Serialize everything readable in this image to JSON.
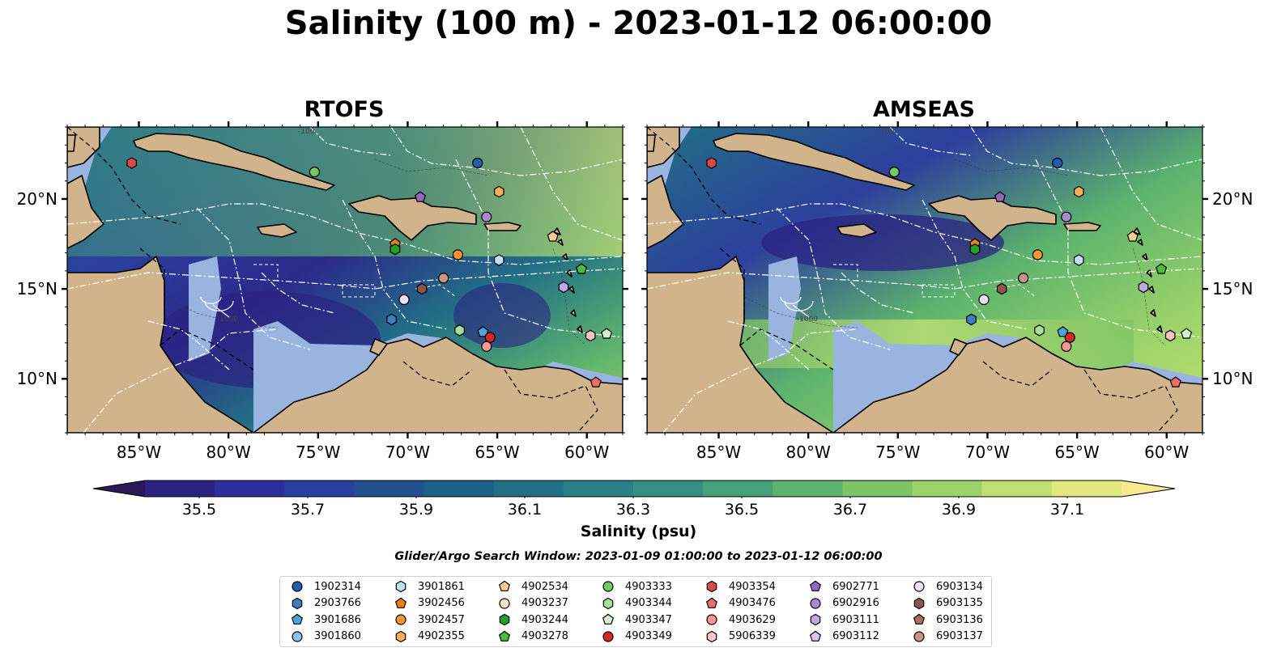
{
  "title": "Salinity (100 m) - 2023-01-12 06:00:00",
  "colors": {
    "land": "#d2b48c",
    "shallow_water": "#9ab4e0",
    "colormap": [
      "#2a1858",
      "#2b2281",
      "#2c2f9c",
      "#283f9d",
      "#21508f",
      "#1b6187",
      "#227085",
      "#2b7f86",
      "#388d84",
      "#46a07a",
      "#5cb36d",
      "#7cc466",
      "#9dd46a",
      "#c1e073",
      "#e2e880",
      "#f6ea8c"
    ]
  },
  "panels": [
    {
      "title": "RTOFS"
    },
    {
      "title": "AMSEAS"
    }
  ],
  "axes": {
    "lon_labels": [
      "85°W",
      "80°W",
      "75°W",
      "70°W",
      "65°W",
      "60°W"
    ],
    "lat_labels": [
      "20°N",
      "15°N",
      "10°N"
    ],
    "lon_range": [
      -89,
      -58
    ],
    "lat_range": [
      7,
      24
    ]
  },
  "contour_labels": [
    "-100",
    "-1000"
  ],
  "colorbar": {
    "label": "Salinity (psu)",
    "ticks": [
      "35.5",
      "35.7",
      "35.9",
      "36.1",
      "36.3",
      "36.5",
      "36.7",
      "36.9",
      "37.1"
    ],
    "range": [
      35.4,
      37.2
    ],
    "extend": "both"
  },
  "search_window": "Glider/Argo Search Window: 2023-01-09 01:00:00 to 2023-01-12 06:00:00",
  "legend": {
    "columns": 7,
    "items": [
      {
        "id": "1902314",
        "marker": "circle",
        "color": "#1f5fae"
      },
      {
        "id": "2903766",
        "marker": "hexagon",
        "color": "#3b7fc0"
      },
      {
        "id": "3901686",
        "marker": "pentagon",
        "color": "#4fa3dd"
      },
      {
        "id": "3901860",
        "marker": "circle",
        "color": "#8cc1ec"
      },
      {
        "id": "3901861",
        "marker": "hexagon",
        "color": "#bfe0f5"
      },
      {
        "id": "3902456",
        "marker": "pentagon",
        "color": "#f07f12"
      },
      {
        "id": "3902457",
        "marker": "circle",
        "color": "#f59431"
      },
      {
        "id": "4902355",
        "marker": "hexagon",
        "color": "#f9ad5b"
      },
      {
        "id": "4902534",
        "marker": "pentagon",
        "color": "#fbcb93"
      },
      {
        "id": "4903237",
        "marker": "circle",
        "color": "#fde2c6"
      },
      {
        "id": "4903244",
        "marker": "hexagon",
        "color": "#22a02c"
      },
      {
        "id": "4903278",
        "marker": "pentagon",
        "color": "#4cbc3c"
      },
      {
        "id": "4903333",
        "marker": "circle",
        "color": "#74c866"
      },
      {
        "id": "4903344",
        "marker": "hexagon",
        "color": "#a7e09a"
      },
      {
        "id": "4903347",
        "marker": "pentagon",
        "color": "#d4f2cf"
      },
      {
        "id": "4903349",
        "marker": "circle",
        "color": "#d62728"
      },
      {
        "id": "4903354",
        "marker": "hexagon",
        "color": "#e04848"
      },
      {
        "id": "4903476",
        "marker": "pentagon",
        "color": "#ee6e6e"
      },
      {
        "id": "4903629",
        "marker": "circle",
        "color": "#f59797"
      },
      {
        "id": "5906339",
        "marker": "hexagon",
        "color": "#fbc3c3"
      },
      {
        "id": "6902771",
        "marker": "pentagon",
        "color": "#9467bd"
      },
      {
        "id": "6902916",
        "marker": "circle",
        "color": "#a98ad0"
      },
      {
        "id": "6903111",
        "marker": "hexagon",
        "color": "#c0a8e0"
      },
      {
        "id": "6903112",
        "marker": "pentagon",
        "color": "#d8c8ee"
      },
      {
        "id": "6903134",
        "marker": "circle",
        "color": "#f0e0f7"
      },
      {
        "id": "6903135",
        "marker": "hexagon",
        "color": "#8c564b"
      },
      {
        "id": "6903136",
        "marker": "pentagon",
        "color": "#a5705f"
      },
      {
        "id": "6903137",
        "marker": "circle",
        "color": "#c49484"
      }
    ]
  },
  "floats": [
    {
      "id": "1902314",
      "lon": -66.1,
      "lat": 22.0
    },
    {
      "id": "2903766",
      "lon": -70.9,
      "lat": 13.3
    },
    {
      "id": "3901686",
      "lon": -65.8,
      "lat": 12.6
    },
    {
      "id": "3902456",
      "lon": -70.7,
      "lat": 17.5
    },
    {
      "id": "3902457",
      "lon": -67.2,
      "lat": 16.9
    },
    {
      "id": "4902355",
      "lon": -64.9,
      "lat": 20.4
    },
    {
      "id": "4902534",
      "lon": -61.9,
      "lat": 17.9
    },
    {
      "id": "3901861",
      "lon": -64.9,
      "lat": 16.6
    },
    {
      "id": "4903244",
      "lon": -70.7,
      "lat": 17.2
    },
    {
      "id": "4903278",
      "lon": -60.3,
      "lat": 16.1
    },
    {
      "id": "4903333",
      "lon": -75.2,
      "lat": 21.5
    },
    {
      "id": "4903344",
      "lon": -67.1,
      "lat": 12.7
    },
    {
      "id": "4903347",
      "lon": -58.9,
      "lat": 12.5
    },
    {
      "id": "4903349",
      "lon": -65.4,
      "lat": 12.3
    },
    {
      "id": "4903354",
      "lon": -85.4,
      "lat": 22.0
    },
    {
      "id": "4903476",
      "lon": -59.5,
      "lat": 9.8
    },
    {
      "id": "4903629",
      "lon": -65.6,
      "lat": 11.8
    },
    {
      "id": "5906339",
      "lon": -59.8,
      "lat": 12.4
    },
    {
      "id": "6902771",
      "lon": -69.3,
      "lat": 20.1
    },
    {
      "id": "6902916",
      "lon": -65.6,
      "lat": 19.0
    },
    {
      "id": "6903111",
      "lon": -61.3,
      "lat": 15.1
    },
    {
      "id": "6903134",
      "lon": -70.2,
      "lat": 14.4
    },
    {
      "id": "6903135",
      "lon": -69.2,
      "lat": 15.0
    },
    {
      "id": "6903137",
      "lon": -68.0,
      "lat": 15.6
    }
  ]
}
